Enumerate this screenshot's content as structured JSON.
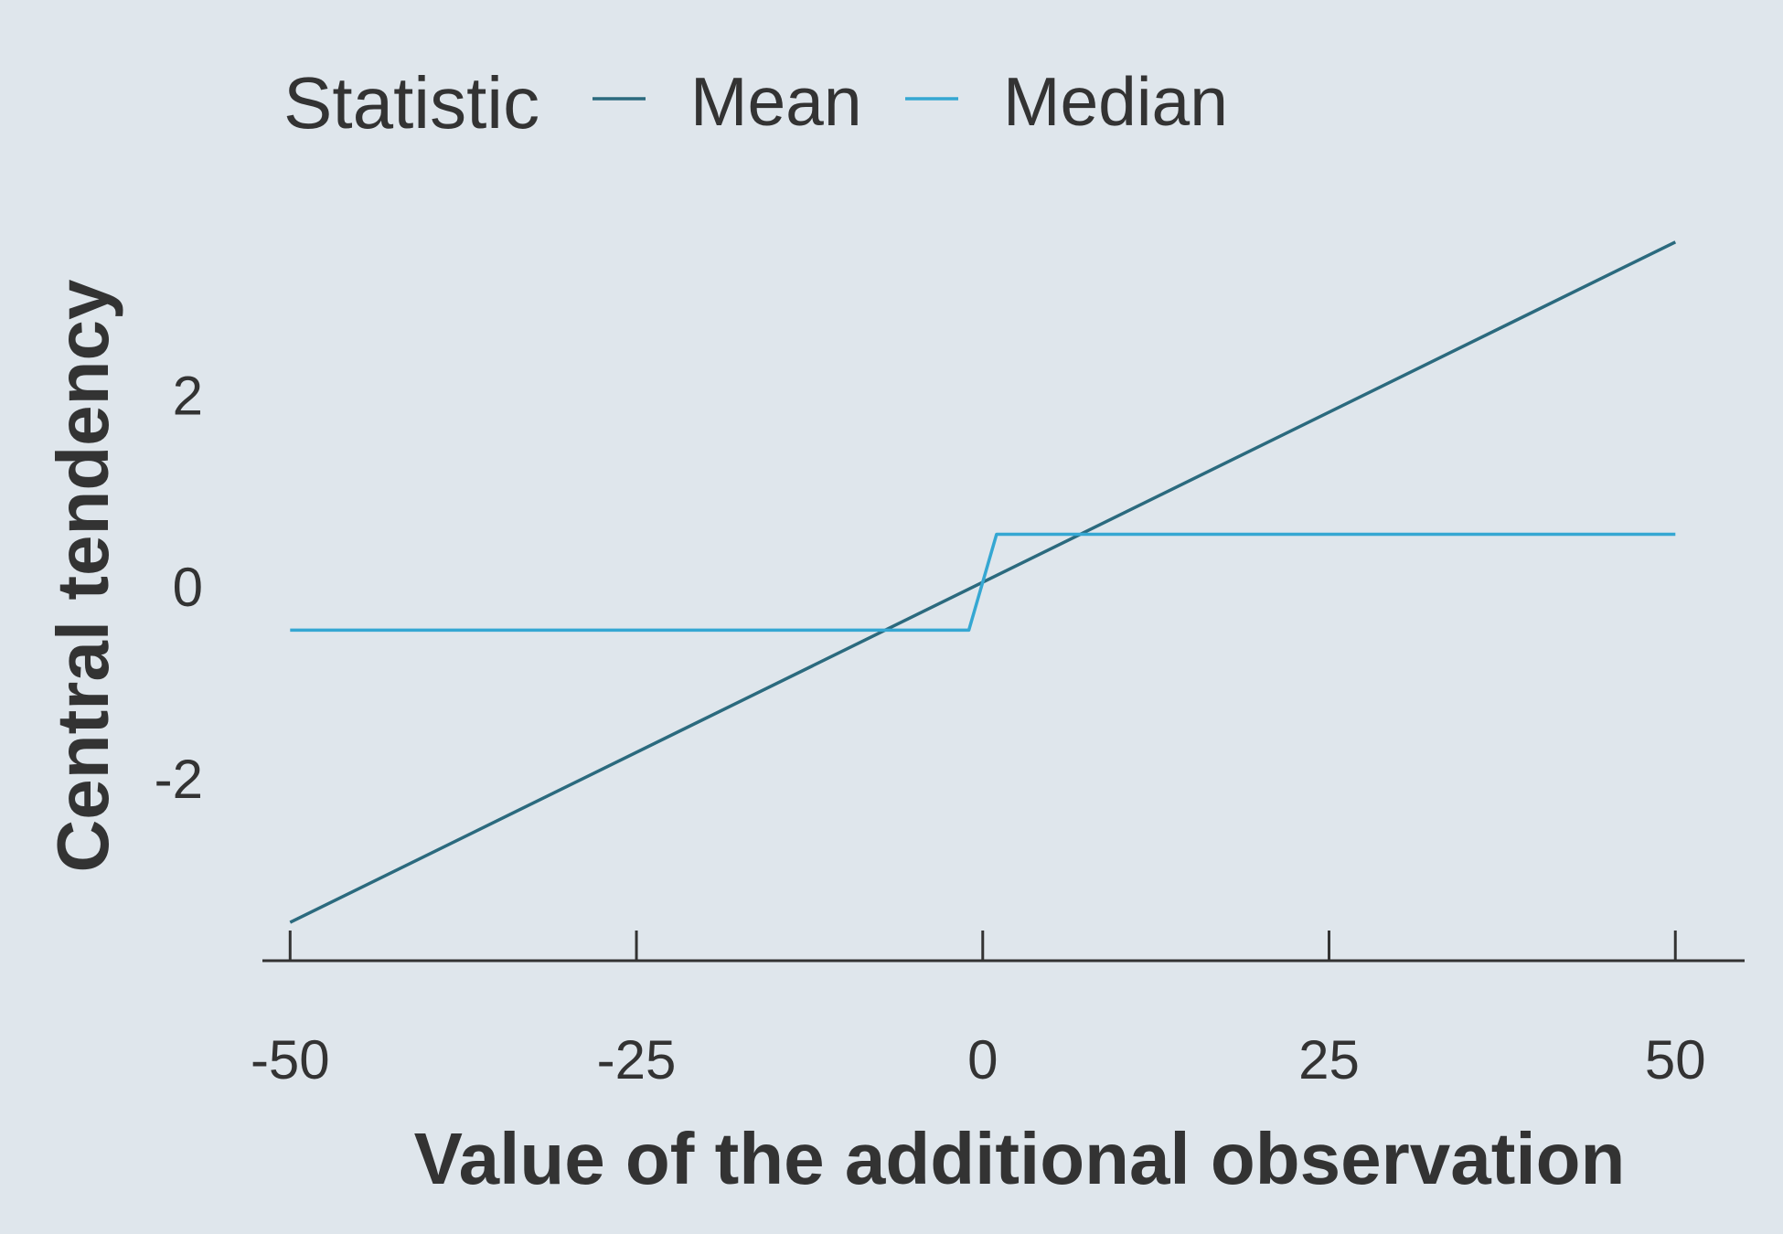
{
  "chart_data": {
    "type": "line",
    "xlabel": "Value of the additional observation",
    "ylabel": "Central tendency",
    "xlim": [
      -52,
      55
    ],
    "ylim": [
      -3.9,
      4.6
    ],
    "x_ticks": [
      -50,
      -25,
      0,
      25,
      50
    ],
    "x_tick_labels": [
      "-50",
      "-25",
      "0",
      "25",
      "50"
    ],
    "y_ticks": [
      -2,
      0,
      2
    ],
    "y_tick_labels": [
      "-2",
      "0",
      "2"
    ],
    "grid": false,
    "legend": {
      "title": "Statistic",
      "position": "top-left"
    },
    "series": [
      {
        "name": "Mean",
        "color": "#2b6a7e",
        "x": [
          -50,
          50
        ],
        "y": [
          -3.5,
          3.6
        ]
      },
      {
        "name": "Median",
        "color": "#35a7d2",
        "x": [
          -50,
          -1,
          1,
          50
        ],
        "y": [
          -0.45,
          -0.45,
          0.55,
          0.55
        ]
      }
    ]
  }
}
